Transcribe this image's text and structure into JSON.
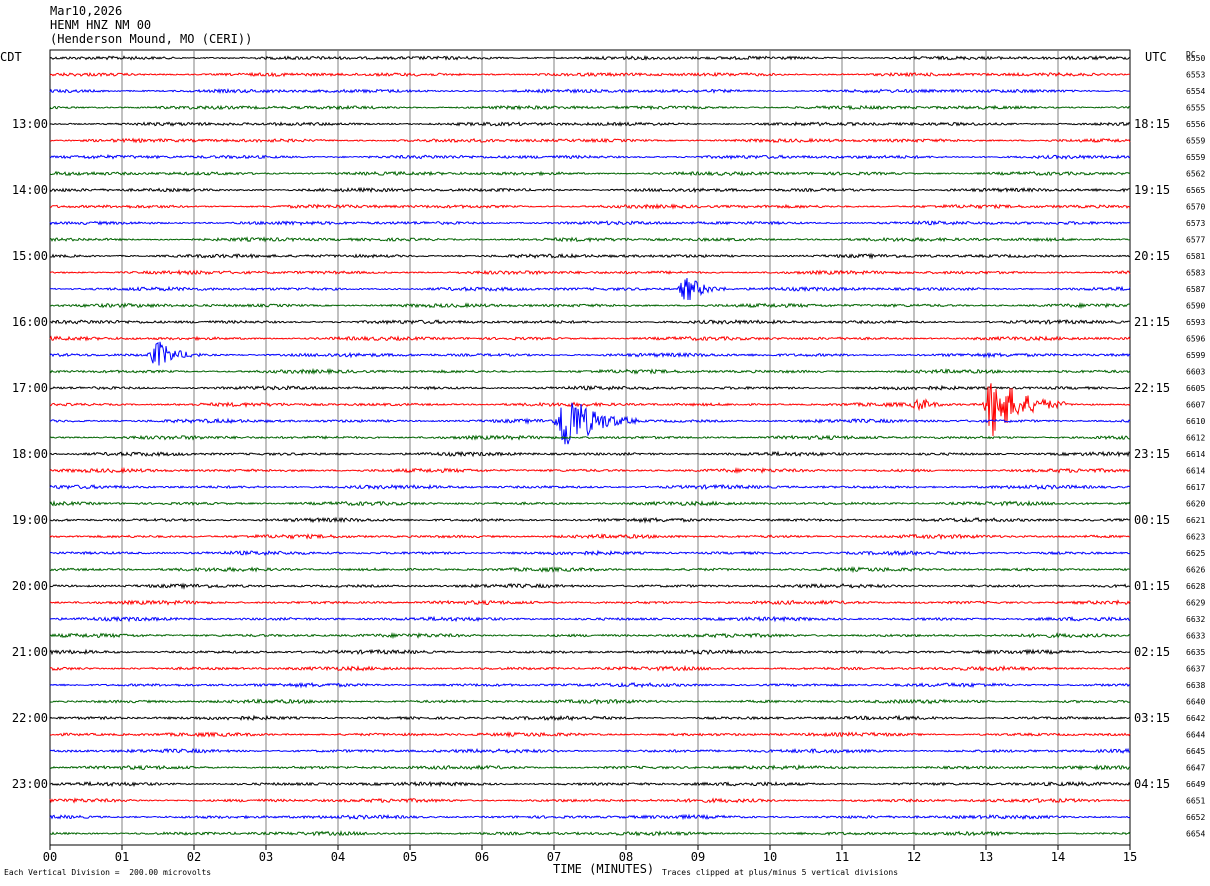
{
  "header": {
    "date": "Mar10,2026",
    "station": "HENM HNZ NM 00",
    "location": "(Henderson Mound, MO (CERI))"
  },
  "labels": {
    "left_tz": "CDT",
    "right_tz": "UTC",
    "dc": "DC",
    "xlabel": "TIME (MINUTES)",
    "scale_note": "Each Vertical Division =  200.00 microvolts",
    "clip_note": "Traces clipped at plus/minus 5 vertical divisions"
  },
  "colors": {
    "trace_cycle": [
      "#000000",
      "#ff0000",
      "#0000ff",
      "#006400"
    ],
    "grid": "#808080"
  },
  "chart_data": {
    "type": "line",
    "title": "HENM HNZ NM 00",
    "xlabel": "TIME (MINUTES)",
    "xlim": [
      0,
      15
    ],
    "x_ticks": [
      "00",
      "01",
      "02",
      "03",
      "04",
      "05",
      "06",
      "07",
      "08",
      "09",
      "10",
      "11",
      "12",
      "13",
      "14",
      "15"
    ],
    "left_hour_labels": [
      "13:00",
      "14:00",
      "15:00",
      "16:00",
      "17:00",
      "18:00",
      "19:00",
      "20:00",
      "21:00",
      "22:00",
      "23:00"
    ],
    "right_hour_labels": [
      "18:15",
      "19:15",
      "20:15",
      "21:15",
      "22:15",
      "23:15",
      "00:15",
      "01:15",
      "02:15",
      "03:15",
      "04:15"
    ],
    "dc_values": [
      "6550",
      "6553",
      "6554",
      "6555",
      "6556",
      "6559",
      "6559",
      "6562",
      "6565",
      "6570",
      "6573",
      "6577",
      "6581",
      "6583",
      "6587",
      "6590",
      "6593",
      "6596",
      "6599",
      "6603",
      "6605",
      "6607",
      "6610",
      "6612",
      "6614",
      "6614",
      "6617",
      "6620",
      "6621",
      "6623",
      "6625",
      "6626",
      "6628",
      "6629",
      "6632",
      "6633",
      "6635",
      "6637",
      "6638",
      "6640",
      "6642",
      "6644",
      "6645",
      "6647",
      "6649",
      "6651",
      "6652",
      "6654"
    ],
    "trace_count": 48,
    "events": [
      {
        "trace": 21,
        "minute": 13.1,
        "amplitude": "large"
      },
      {
        "trace": 22,
        "minute": 7.15,
        "amplitude": "large"
      },
      {
        "trace": 18,
        "minute": 1.5,
        "amplitude": "medium"
      },
      {
        "trace": 14,
        "minute": 8.85,
        "amplitude": "medium"
      },
      {
        "trace": 21,
        "minute": 12.1,
        "amplitude": "small"
      }
    ]
  }
}
